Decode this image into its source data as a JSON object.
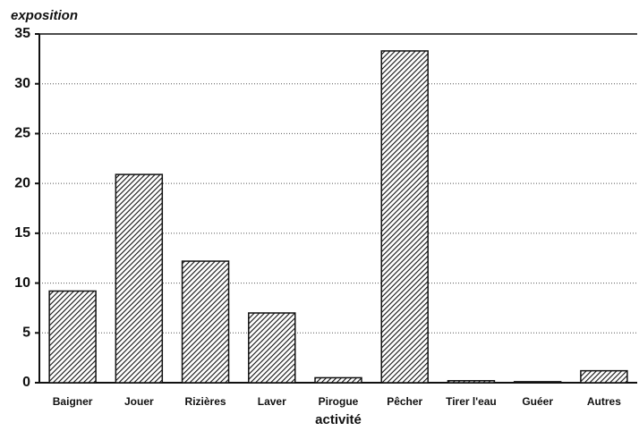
{
  "chart_data": {
    "type": "bar",
    "y_label": "exposition",
    "x_label": "activité",
    "categories": [
      "Baigner",
      "Jouer",
      "Rizières",
      "Laver",
      "Pirogue",
      "Pêcher",
      "Tirer l'eau",
      "Guéer",
      "Autres"
    ],
    "values": [
      9.2,
      20.9,
      12.2,
      7.0,
      0.5,
      33.3,
      0.2,
      0.1,
      1.2
    ],
    "color": "#111111",
    "ylim": [
      0,
      35
    ],
    "yticks": [
      0,
      5,
      10,
      15,
      20,
      25,
      30,
      35
    ],
    "grid": true
  }
}
